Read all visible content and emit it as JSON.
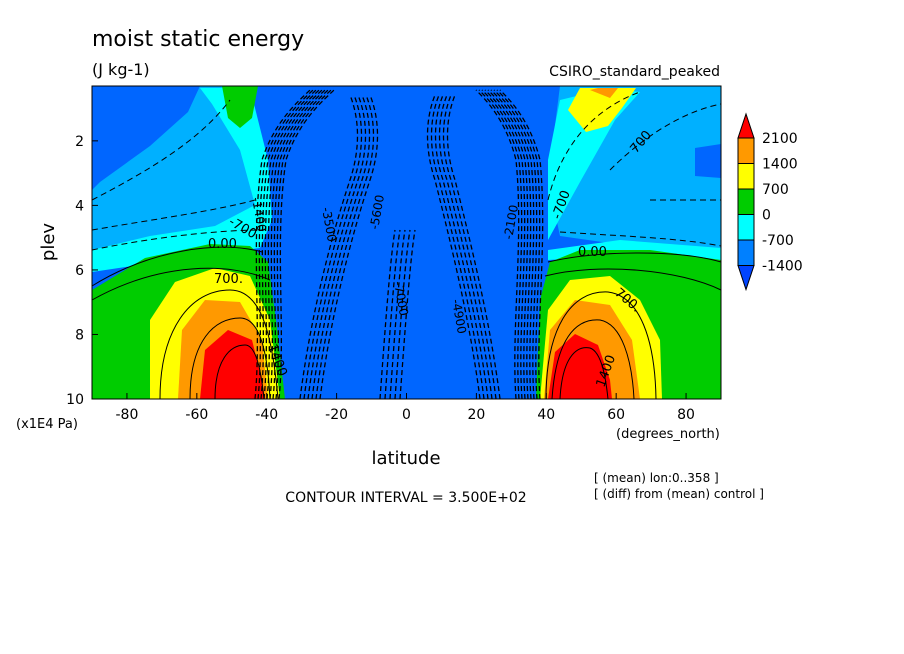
{
  "chart_data": {
    "type": "heatmap",
    "title": "moist static energy",
    "subtitle": "(J kg-1)",
    "experiment": "CSIRO_standard_peaked",
    "xlabel": "latitude",
    "xunits": "(degrees_north)",
    "ylabel": "plev",
    "yunits": "(x1E4 Pa)",
    "xlim": [
      -90,
      90
    ],
    "ylim": [
      10,
      0.3
    ],
    "x_ticks": [
      "-80",
      "-60",
      "-40",
      "-20",
      "0",
      "20",
      "40",
      "60",
      "80"
    ],
    "x_tick_values": [
      -80,
      -60,
      -40,
      -20,
      0,
      20,
      40,
      60,
      80
    ],
    "y_ticks": [
      "2",
      "4",
      "6",
      "8",
      "10"
    ],
    "y_tick_values": [
      2,
      4,
      6,
      8,
      10
    ],
    "contour_interval_text": "CONTOUR INTERVAL = 3.500E+02",
    "notes": [
      "[ (mean) lon:0..358 ]",
      "[ (diff) from (mean) control ]"
    ],
    "colorbar": {
      "labels": [
        "2100",
        "1400",
        "700",
        "0",
        "-700",
        "-1400"
      ],
      "colors": [
        "#ff0000",
        "#ff9900",
        "#ffff00",
        "#00cc00",
        "#00ffff",
        "#0080ff",
        "#0044ff"
      ]
    },
    "contour_labels": [
      "0.00",
      "700.",
      "1400",
      "-700",
      "0.00",
      "700.",
      "1400",
      "700",
      "-700",
      "-1400",
      "-3500",
      "-5600",
      "-7000",
      "-4900",
      "-2100"
    ],
    "colors": {
      "red": "#ff0000",
      "orange": "#ff9900",
      "yellow": "#ffff00",
      "green": "#00cc00",
      "cyan": "#00ffff",
      "lightblue": "#00b0ff",
      "blue": "#0066ff",
      "deepblue": "#0044ff"
    }
  }
}
